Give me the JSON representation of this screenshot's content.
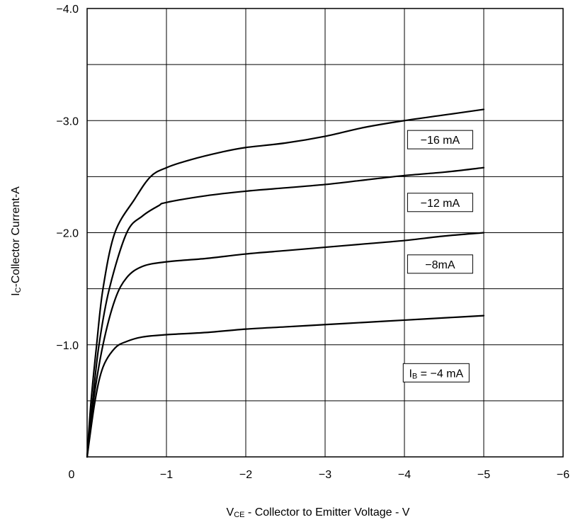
{
  "chart_data": {
    "type": "line",
    "title": "",
    "xlabel": {
      "prefix": "V",
      "subscript": "CE",
      "text": " - Collector to Emitter Voltage - V"
    },
    "ylabel": {
      "prefix": "I",
      "subscript": "C",
      "text": "-Collector Current-A"
    },
    "xlim": [
      0,
      -6
    ],
    "ylim": [
      0,
      -4.0
    ],
    "grid": true,
    "x_ticks": [
      {
        "value": 0,
        "label": "0"
      },
      {
        "value": -1,
        "label": "−1"
      },
      {
        "value": -2,
        "label": "−2"
      },
      {
        "value": -3,
        "label": "−3"
      },
      {
        "value": -4,
        "label": "−4"
      },
      {
        "value": -5,
        "label": "−5"
      },
      {
        "value": -6,
        "label": "−6"
      }
    ],
    "y_ticks": [
      {
        "value": -1.0,
        "label": "−1.0"
      },
      {
        "value": -2.0,
        "label": "−2.0"
      },
      {
        "value": -3.0,
        "label": "−3.0"
      },
      {
        "value": -4.0,
        "label": "−4.0"
      }
    ],
    "y_grid_values": [
      -0.5,
      -1.0,
      -1.5,
      -2.0,
      -2.5,
      -3.0,
      -3.5,
      -4.0
    ],
    "series": [
      {
        "name": "−16 mA",
        "label_prefix": "",
        "label_value": "−16 mA",
        "label_at": {
          "x": -4.45,
          "y": -2.83
        },
        "points": [
          [
            0,
            0
          ],
          [
            -0.05,
            -0.5
          ],
          [
            -0.12,
            -1.0
          ],
          [
            -0.2,
            -1.5
          ],
          [
            -0.35,
            -2.0
          ],
          [
            -0.6,
            -2.3
          ],
          [
            -0.8,
            -2.5
          ],
          [
            -1.0,
            -2.58
          ],
          [
            -1.3,
            -2.65
          ],
          [
            -1.7,
            -2.72
          ],
          [
            -2.0,
            -2.76
          ],
          [
            -2.5,
            -2.8
          ],
          [
            -3.0,
            -2.86
          ],
          [
            -3.5,
            -2.94
          ],
          [
            -4.0,
            -3.0
          ],
          [
            -4.5,
            -3.05
          ],
          [
            -5.0,
            -3.1
          ]
        ]
      },
      {
        "name": "−12 mA",
        "label_prefix": "",
        "label_value": "−12 mA",
        "label_at": {
          "x": -4.45,
          "y": -2.27
        },
        "points": [
          [
            0,
            0
          ],
          [
            -0.07,
            -0.5
          ],
          [
            -0.15,
            -1.0
          ],
          [
            -0.28,
            -1.5
          ],
          [
            -0.5,
            -2.0
          ],
          [
            -0.7,
            -2.15
          ],
          [
            -0.9,
            -2.24
          ],
          [
            -1.0,
            -2.27
          ],
          [
            -1.5,
            -2.33
          ],
          [
            -2.0,
            -2.37
          ],
          [
            -2.5,
            -2.4
          ],
          [
            -3.0,
            -2.43
          ],
          [
            -3.5,
            -2.47
          ],
          [
            -4.0,
            -2.51
          ],
          [
            -4.5,
            -2.54
          ],
          [
            -5.0,
            -2.58
          ]
        ]
      },
      {
        "name": "−8mA",
        "label_prefix": "",
        "label_value": "−8mA",
        "label_at": {
          "x": -4.45,
          "y": -1.72
        },
        "points": [
          [
            0,
            0
          ],
          [
            -0.08,
            -0.5
          ],
          [
            -0.2,
            -1.0
          ],
          [
            -0.35,
            -1.4
          ],
          [
            -0.5,
            -1.6
          ],
          [
            -0.7,
            -1.7
          ],
          [
            -1.0,
            -1.74
          ],
          [
            -1.5,
            -1.77
          ],
          [
            -2.0,
            -1.81
          ],
          [
            -2.5,
            -1.84
          ],
          [
            -3.0,
            -1.87
          ],
          [
            -3.5,
            -1.9
          ],
          [
            -4.0,
            -1.93
          ],
          [
            -4.5,
            -1.97
          ],
          [
            -5.0,
            -2.0
          ]
        ]
      },
      {
        "name": "I<sub>B</sub> = −4 mA",
        "label_prefix": "I",
        "label_subscript": "B",
        "label_value": " = −4 mA",
        "label_at": {
          "x": -4.4,
          "y": -0.75
        },
        "points": [
          [
            0,
            0
          ],
          [
            -0.1,
            -0.5
          ],
          [
            -0.2,
            -0.8
          ],
          [
            -0.35,
            -0.97
          ],
          [
            -0.5,
            -1.03
          ],
          [
            -0.7,
            -1.07
          ],
          [
            -1.0,
            -1.09
          ],
          [
            -1.5,
            -1.11
          ],
          [
            -2.0,
            -1.14
          ],
          [
            -2.5,
            -1.16
          ],
          [
            -3.0,
            -1.18
          ],
          [
            -3.5,
            -1.2
          ],
          [
            -4.0,
            -1.22
          ],
          [
            -4.5,
            -1.24
          ],
          [
            -5.0,
            -1.26
          ]
        ]
      }
    ]
  }
}
